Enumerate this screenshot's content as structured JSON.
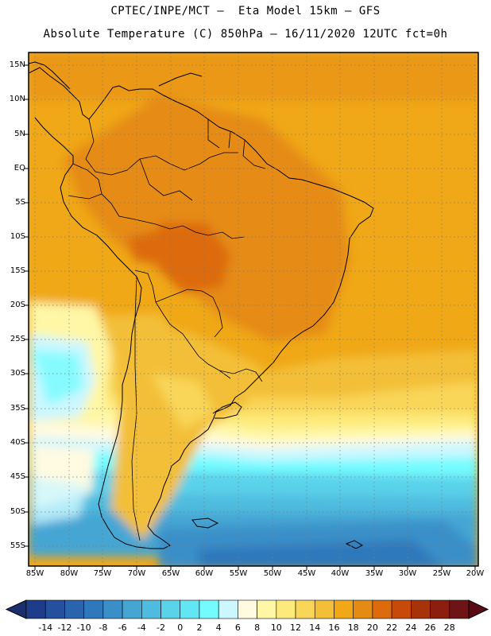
{
  "header": {
    "line1": "CPTEC/INPE/MCT –  Eta Model 15km – GFS",
    "line2": "Absolute Temperature (C) 850hPa – 16/11/2020 12UTC fct=0h"
  },
  "map": {
    "lat_labels": [
      "15N",
      "10N",
      "5N",
      "EQ",
      "5S",
      "10S",
      "15S",
      "20S",
      "25S",
      "30S",
      "35S",
      "40S",
      "45S",
      "50S",
      "55S"
    ],
    "lon_labels": [
      "85W",
      "80W",
      "75W",
      "70W",
      "65W",
      "60W",
      "55W",
      "50W",
      "45W",
      "40W",
      "35W",
      "30W",
      "25W",
      "20W"
    ],
    "gridlines": "dotted"
  },
  "colorbar": {
    "labels": [
      "-14",
      "-12",
      "-10",
      "-8",
      "-6",
      "-4",
      "-2",
      "0",
      "2",
      "4",
      "6",
      "8",
      "10",
      "12",
      "14",
      "16",
      "18",
      "20",
      "22",
      "24",
      "26",
      "28"
    ],
    "colors": [
      "#1e3c8a",
      "#24509e",
      "#2a64ae",
      "#2f78bc",
      "#3a8fc8",
      "#45a6d4",
      "#4fbcdf",
      "#5ad2ea",
      "#63e6f3",
      "#74fbff",
      "#cdf7ff",
      "#fffae0",
      "#fff7a6",
      "#fdea7a",
      "#f9d658",
      "#f3bf38",
      "#f0a818",
      "#e58b14",
      "#dd6a0d",
      "#c84a0a",
      "#a8320a",
      "#8c1e10",
      "#6e1414"
    ],
    "under_color": "#1a2f6e",
    "over_color": "#5a0a12"
  }
}
